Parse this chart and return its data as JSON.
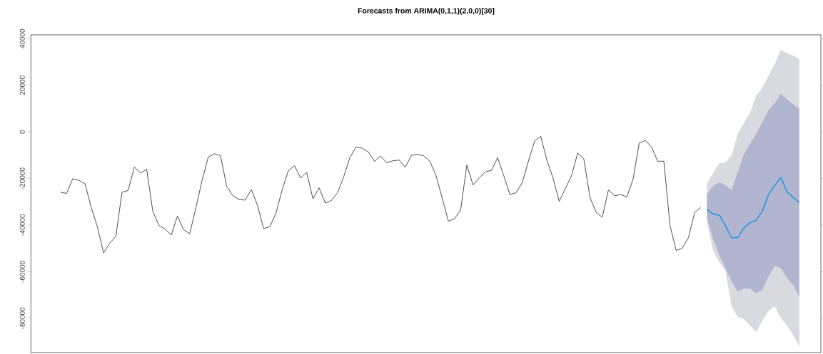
{
  "chart_data": {
    "type": "line",
    "title": "Forecasts from ARIMA(0,1,1)(2,0,0)[30]",
    "categories": [
      null,
      null,
      null,
      null,
      null,
      null,
      null,
      null,
      null,
      null,
      null,
      null,
      null,
      null,
      null,
      null,
      null,
      null,
      null,
      null,
      null,
      null,
      null,
      null,
      null,
      null,
      null,
      null,
      null,
      null,
      null,
      null,
      null,
      null,
      null,
      null,
      null,
      null,
      null,
      null,
      null,
      null,
      null,
      null,
      null,
      null,
      null,
      null,
      null,
      null,
      null,
      null,
      null,
      null,
      null,
      null,
      null,
      null,
      null,
      null,
      null,
      null,
      null,
      null,
      null,
      null,
      null,
      null,
      null,
      null,
      null,
      null,
      null,
      null,
      null,
      null,
      null,
      null,
      null,
      null,
      null,
      null,
      null,
      null,
      null,
      null,
      null,
      null,
      null,
      null,
      null,
      null,
      null,
      null,
      null,
      null,
      null,
      null,
      null,
      null,
      null,
      null,
      null,
      null,
      null,
      null,
      null,
      null,
      null,
      null,
      null,
      null,
      null,
      null,
      null,
      null,
      null,
      null,
      null,
      null,
      null
    ],
    "ylim": [
      -94700,
      41600
    ],
    "yticks": [
      -80000,
      -60000,
      -40000,
      -20000,
      0,
      20000,
      40000
    ],
    "tick_labels": "y",
    "series": [
      {
        "color": "#222222",
        "values": [
          -25900,
          -26400,
          -20100,
          -20800,
          -22300,
          -32500,
          -40700,
          -51900,
          -47800,
          -44800,
          -25900,
          -25100,
          -15100,
          -17700,
          -16000,
          -34100,
          -40200,
          -41700,
          -44200,
          -36100,
          -42000,
          -43700,
          -32500,
          -20800,
          -10900,
          -9400,
          -10200,
          -23400,
          -27400,
          -29000,
          -29300,
          -24700,
          -31500,
          -41500,
          -40700,
          -34900,
          -24900,
          -16700,
          -14500,
          -19800,
          -17400,
          -28700,
          -24000,
          -30500,
          -29500,
          -26100,
          -19300,
          -11100,
          -6500,
          -7000,
          -8600,
          -12600,
          -10400,
          -13300,
          -12400,
          -12100,
          -15200,
          -10100,
          -9600,
          -10300,
          -12600,
          -18800,
          -28400,
          -38300,
          -37300,
          -33500,
          -14200,
          -22800,
          -19800,
          -17200,
          -16500,
          -11100,
          -18800,
          -26900,
          -26100,
          -21800,
          -12600,
          -4000,
          -1900,
          -12100,
          -19800,
          -29800,
          -24400,
          -18800,
          -9100,
          -11600,
          -28100,
          -34600,
          -36600,
          -24900,
          -27400,
          -26900,
          -27900,
          -20300,
          -4800,
          -3700,
          -6500,
          -12600,
          -12600,
          -40200,
          -50900,
          -49900,
          -45300,
          -34600,
          -32500,
          null,
          null,
          null,
          null,
          null,
          null,
          null,
          null,
          null,
          null,
          null,
          null,
          null,
          null,
          null,
          null
        ]
      },
      {
        "color": "#d9dae0",
        "values": [
          null,
          null,
          null,
          null,
          null,
          null,
          null,
          null,
          null,
          null,
          null,
          null,
          null,
          null,
          null,
          null,
          null,
          null,
          null,
          null,
          null,
          null,
          null,
          null,
          null,
          null,
          null,
          null,
          null,
          null,
          null,
          null,
          null,
          null,
          null,
          null,
          null,
          null,
          null,
          null,
          null,
          null,
          null,
          null,
          null,
          null,
          null,
          null,
          null,
          null,
          null,
          null,
          null,
          null,
          null,
          null,
          null,
          null,
          null,
          null,
          null,
          null,
          null,
          null,
          null,
          null,
          null,
          null,
          null,
          null,
          null,
          null,
          null,
          null,
          null,
          null,
          null,
          null,
          null,
          null,
          null,
          null,
          null,
          null,
          null,
          null,
          null,
          null,
          null,
          null,
          null,
          null,
          null,
          null,
          null,
          null,
          null,
          null,
          null,
          null,
          null,
          null,
          null,
          null,
          null,
          null,
          null,
          null,
          null,
          null,
          null,
          null,
          null,
          null,
          null,
          null,
          null,
          null,
          null,
          null,
          null
        ],
        "lower": [
          null,
          null,
          null,
          null,
          null,
          null,
          null,
          null,
          null,
          null,
          null,
          null,
          null,
          null,
          null,
          null,
          null,
          null,
          null,
          null,
          null,
          null,
          null,
          null,
          null,
          null,
          null,
          null,
          null,
          null,
          null,
          null,
          null,
          null,
          null,
          null,
          null,
          null,
          null,
          null,
          null,
          null,
          null,
          null,
          null,
          null,
          null,
          null,
          null,
          null,
          null,
          null,
          null,
          null,
          null,
          null,
          null,
          null,
          null,
          null,
          null,
          null,
          null,
          null,
          null,
          null,
          null,
          null,
          null,
          null,
          null,
          null,
          null,
          null,
          null,
          null,
          null,
          null,
          null,
          null,
          null,
          null,
          null,
          null,
          null,
          null,
          null,
          null,
          null,
          null,
          null,
          null,
          null,
          null,
          null,
          null,
          null,
          null,
          null,
          null,
          null,
          null,
          null,
          null,
          null,
          -38600,
          -50900,
          -56000,
          -59500,
          -74800,
          -79400,
          -80400,
          -83000,
          -86000,
          -80900,
          -76900,
          -74800,
          -79900,
          -83000,
          -87100,
          -92200
        ],
        "upper": [
          null,
          null,
          null,
          null,
          null,
          null,
          null,
          null,
          null,
          null,
          null,
          null,
          null,
          null,
          null,
          null,
          null,
          null,
          null,
          null,
          null,
          null,
          null,
          null,
          null,
          null,
          null,
          null,
          null,
          null,
          null,
          null,
          null,
          null,
          null,
          null,
          null,
          null,
          null,
          null,
          null,
          null,
          null,
          null,
          null,
          null,
          null,
          null,
          null,
          null,
          null,
          null,
          null,
          null,
          null,
          null,
          null,
          null,
          null,
          null,
          null,
          null,
          null,
          null,
          null,
          null,
          null,
          null,
          null,
          null,
          null,
          null,
          null,
          null,
          null,
          null,
          null,
          null,
          null,
          null,
          null,
          null,
          null,
          null,
          null,
          null,
          null,
          null,
          null,
          null,
          null,
          null,
          null,
          null,
          null,
          null,
          null,
          null,
          null,
          null,
          null,
          null,
          null,
          null,
          null,
          -22300,
          -17700,
          -13500,
          -13200,
          -10100,
          -900,
          3700,
          8200,
          15400,
          19000,
          24000,
          29100,
          35300,
          33700,
          32700,
          31400
        ]
      },
      {
        "color": "#b1b5cf",
        "values": [
          null,
          null,
          null,
          null,
          null,
          null,
          null,
          null,
          null,
          null,
          null,
          null,
          null,
          null,
          null,
          null,
          null,
          null,
          null,
          null,
          null,
          null,
          null,
          null,
          null,
          null,
          null,
          null,
          null,
          null,
          null,
          null,
          null,
          null,
          null,
          null,
          null,
          null,
          null,
          null,
          null,
          null,
          null,
          null,
          null,
          null,
          null,
          null,
          null,
          null,
          null,
          null,
          null,
          null,
          null,
          null,
          null,
          null,
          null,
          null,
          null,
          null,
          null,
          null,
          null,
          null,
          null,
          null,
          null,
          null,
          null,
          null,
          null,
          null,
          null,
          null,
          null,
          null,
          null,
          null,
          null,
          null,
          null,
          null,
          null,
          null,
          null,
          null,
          null,
          null,
          null,
          null,
          null,
          null,
          null,
          null,
          null,
          null,
          null,
          null,
          null,
          null,
          null,
          null,
          null,
          null,
          null,
          null,
          null,
          null,
          null,
          null,
          null,
          null,
          null,
          null,
          null,
          null,
          null,
          null,
          null
        ],
        "lower": [
          null,
          null,
          null,
          null,
          null,
          null,
          null,
          null,
          null,
          null,
          null,
          null,
          null,
          null,
          null,
          null,
          null,
          null,
          null,
          null,
          null,
          null,
          null,
          null,
          null,
          null,
          null,
          null,
          null,
          null,
          null,
          null,
          null,
          null,
          null,
          null,
          null,
          null,
          null,
          null,
          null,
          null,
          null,
          null,
          null,
          null,
          null,
          null,
          null,
          null,
          null,
          null,
          null,
          null,
          null,
          null,
          null,
          null,
          null,
          null,
          null,
          null,
          null,
          null,
          null,
          null,
          null,
          null,
          null,
          null,
          null,
          null,
          null,
          null,
          null,
          null,
          null,
          null,
          null,
          null,
          null,
          null,
          null,
          null,
          null,
          null,
          null,
          null,
          null,
          null,
          null,
          null,
          null,
          null,
          null,
          null,
          null,
          null,
          null,
          null,
          null,
          null,
          null,
          null,
          null,
          -37100,
          -45800,
          -52900,
          -58500,
          -64100,
          -68500,
          -67200,
          -67200,
          -69200,
          -67700,
          -62000,
          -57500,
          -58500,
          -62600,
          -65700,
          -70800
        ],
        "upper": [
          null,
          null,
          null,
          null,
          null,
          null,
          null,
          null,
          null,
          null,
          null,
          null,
          null,
          null,
          null,
          null,
          null,
          null,
          null,
          null,
          null,
          null,
          null,
          null,
          null,
          null,
          null,
          null,
          null,
          null,
          null,
          null,
          null,
          null,
          null,
          null,
          null,
          null,
          null,
          null,
          null,
          null,
          null,
          null,
          null,
          null,
          null,
          null,
          null,
          null,
          null,
          null,
          null,
          null,
          null,
          null,
          null,
          null,
          null,
          null,
          null,
          null,
          null,
          null,
          null,
          null,
          null,
          null,
          null,
          null,
          null,
          null,
          null,
          null,
          null,
          null,
          null,
          null,
          null,
          null,
          null,
          null,
          null,
          null,
          null,
          null,
          null,
          null,
          null,
          null,
          null,
          null,
          null,
          null,
          null,
          null,
          null,
          null,
          null,
          null,
          null,
          null,
          null,
          null,
          null,
          -26900,
          -23100,
          -21600,
          -22800,
          -25100,
          -17200,
          -9600,
          -5000,
          -900,
          4200,
          9300,
          12300,
          16400,
          13900,
          11800,
          9800
        ]
      },
      {
        "color": "#2297e6",
        "values": [
          null,
          null,
          null,
          null,
          null,
          null,
          null,
          null,
          null,
          null,
          null,
          null,
          null,
          null,
          null,
          null,
          null,
          null,
          null,
          null,
          null,
          null,
          null,
          null,
          null,
          null,
          null,
          null,
          null,
          null,
          null,
          null,
          null,
          null,
          null,
          null,
          null,
          null,
          null,
          null,
          null,
          null,
          null,
          null,
          null,
          null,
          null,
          null,
          null,
          null,
          null,
          null,
          null,
          null,
          null,
          null,
          null,
          null,
          null,
          null,
          null,
          null,
          null,
          null,
          null,
          null,
          null,
          null,
          null,
          null,
          null,
          null,
          null,
          null,
          null,
          null,
          null,
          null,
          null,
          null,
          null,
          null,
          null,
          null,
          null,
          null,
          null,
          null,
          null,
          null,
          null,
          null,
          null,
          null,
          null,
          null,
          null,
          null,
          null,
          null,
          null,
          null,
          null,
          null,
          null,
          -33200,
          -35300,
          -35700,
          -40200,
          -45500,
          -45300,
          -41200,
          -38900,
          -37900,
          -34000,
          -26900,
          -23000,
          -19600,
          -25700,
          -28100,
          -30300
        ]
      }
    ]
  }
}
